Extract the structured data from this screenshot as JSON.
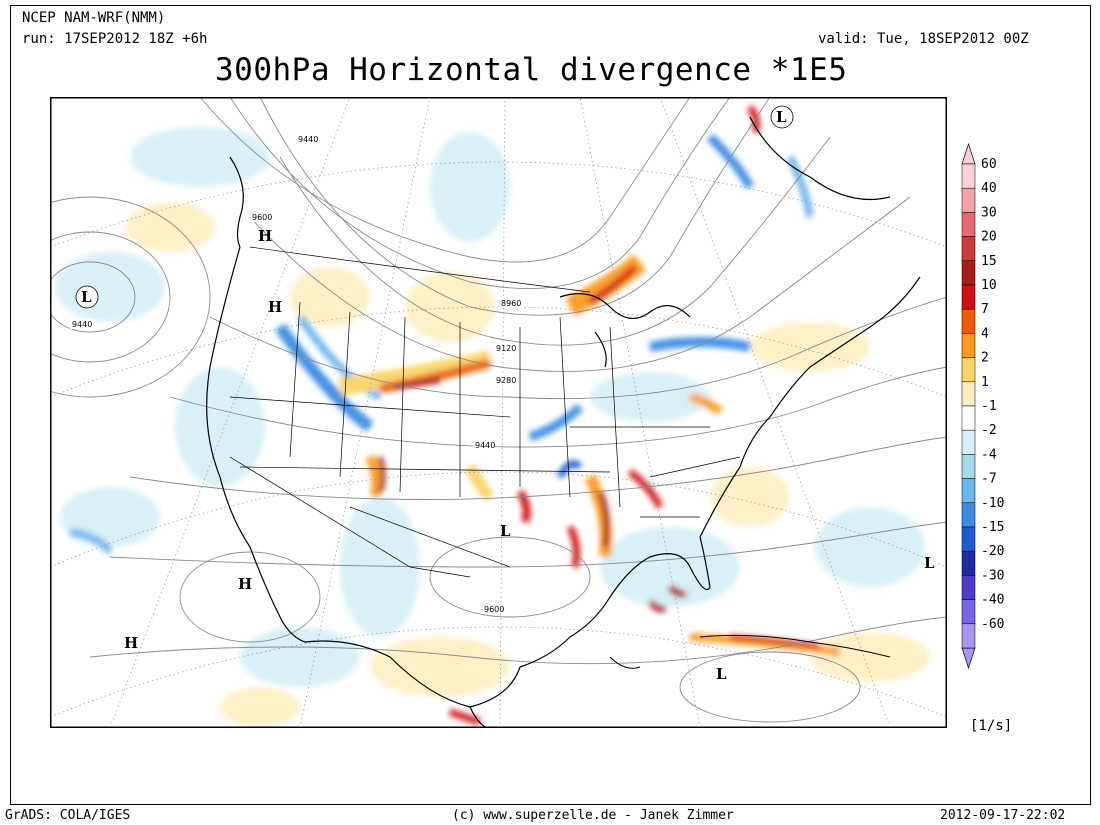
{
  "header": {
    "model": "NCEP NAM-WRF(NMM)",
    "run": "run: 17SEP2012 18Z +6h",
    "valid": "valid: Tue, 18SEP2012 00Z",
    "title": "300hPa Horizontal divergence *1E5"
  },
  "colorbar": {
    "units": "[1/s]",
    "levels": [
      {
        "label": "60",
        "color": "#fbd0d8"
      },
      {
        "label": "40",
        "color": "#f4a0a8"
      },
      {
        "label": "30",
        "color": "#e86a6e"
      },
      {
        "label": "20",
        "color": "#cc3a3a"
      },
      {
        "label": "15",
        "color": "#a81e1e"
      },
      {
        "label": "10",
        "color": "#d01010"
      },
      {
        "label": "7",
        "color": "#ee5c00"
      },
      {
        "label": "4",
        "color": "#fb9a1e"
      },
      {
        "label": "2",
        "color": "#fbd468"
      },
      {
        "label": "1",
        "color": "#fdefc4"
      },
      {
        "label": "-1",
        "color": "#ffffff"
      },
      {
        "label": "-2",
        "color": "#d6f0f6"
      },
      {
        "label": "-4",
        "color": "#a4dcee"
      },
      {
        "label": "-7",
        "color": "#6cb6ee"
      },
      {
        "label": "-10",
        "color": "#3a8ce4"
      },
      {
        "label": "-15",
        "color": "#1e5cd0"
      },
      {
        "label": "-20",
        "color": "#1a2ca0"
      },
      {
        "label": "-30",
        "color": "#4c3cc6"
      },
      {
        "label": "-40",
        "color": "#7864e4"
      },
      {
        "label": "-60",
        "color": "#a894f4"
      }
    ]
  },
  "pressure_centers": [
    {
      "type": "L",
      "circled": true
    },
    {
      "type": "L",
      "circled": true
    },
    {
      "type": "H",
      "circled": false
    },
    {
      "type": "H",
      "circled": false
    },
    {
      "type": "L",
      "circled": false
    },
    {
      "type": "H",
      "circled": false
    },
    {
      "type": "H",
      "circled": false
    },
    {
      "type": "L",
      "circled": false
    },
    {
      "type": "L",
      "circled": false
    }
  ],
  "contour_labels": [
    "9440",
    "9600",
    "9440",
    "8960",
    "9120",
    "9280",
    "9440",
    "9600"
  ],
  "footer": {
    "left": "GrADS: COLA/IGES",
    "center": "(c) www.superzelle.de - Janek Zimmer",
    "right": "2012-09-17-22:02"
  }
}
